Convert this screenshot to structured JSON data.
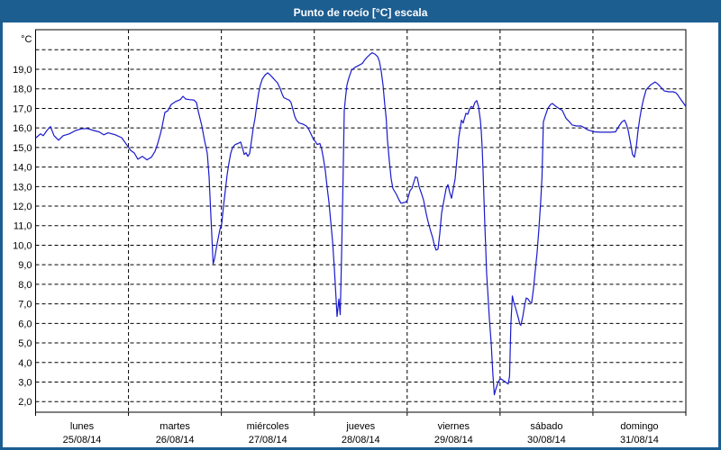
{
  "window": {
    "title": "Punto de rocío [°C] escala"
  },
  "colors": {
    "titlebar_bg": "#1d5e91",
    "title_text": "#ffffff",
    "frame": "#1d5e91",
    "plot_border": "#000000",
    "grid": "#000000",
    "line": "#1a1acc",
    "label": "#000000",
    "background": "#ffffff"
  },
  "chart_data": {
    "type": "line",
    "title": "Punto de rocío [°C] escala",
    "unit_label": "°C",
    "grid": "dashed",
    "legend": "none",
    "y_axis": {
      "labeled_ticks": [
        2,
        3,
        4,
        5,
        6,
        7,
        8,
        9,
        10,
        11,
        12,
        13,
        14,
        15,
        16,
        17,
        18,
        19
      ],
      "tick_labels": [
        "2,0",
        "3,0",
        "4,0",
        "5,0",
        "6,0",
        "7,0",
        "8,0",
        "9,0",
        "10,0",
        "11,0",
        "12,0",
        "13,0",
        "14,0",
        "15,0",
        "16,0",
        "17,0",
        "18,0",
        "19,0"
      ],
      "unlabeled_grid_max": 20,
      "ylim_bottom": 1.45,
      "ylim_top": 21.0
    },
    "x_axis": {
      "days": [
        {
          "name": "lunes",
          "date": "25/08/14"
        },
        {
          "name": "martes",
          "date": "26/08/14"
        },
        {
          "name": "miércoles",
          "date": "27/08/14"
        },
        {
          "name": "jueves",
          "date": "28/08/14"
        },
        {
          "name": "viernes",
          "date": "29/08/14"
        },
        {
          "name": "sábado",
          "date": "30/08/14"
        },
        {
          "name": "domingo",
          "date": "31/08/14"
        }
      ]
    },
    "series": [
      {
        "name": "Punto de rocío",
        "unit": "°C",
        "points": [
          [
            0.005,
            15.5
          ],
          [
            0.053,
            15.7
          ],
          [
            0.082,
            15.6
          ],
          [
            0.121,
            15.87
          ],
          [
            0.16,
            16.07
          ],
          [
            0.199,
            15.6
          ],
          [
            0.247,
            15.37
          ],
          [
            0.296,
            15.6
          ],
          [
            0.364,
            15.7
          ],
          [
            0.432,
            15.87
          ],
          [
            0.49,
            15.95
          ],
          [
            0.558,
            15.97
          ],
          [
            0.626,
            15.87
          ],
          [
            0.684,
            15.8
          ],
          [
            0.733,
            15.65
          ],
          [
            0.781,
            15.75
          ],
          [
            0.859,
            15.65
          ],
          [
            0.927,
            15.5
          ],
          [
            0.994,
            15.05
          ],
          [
            1.024,
            14.85
          ],
          [
            1.062,
            14.72
          ],
          [
            1.101,
            14.4
          ],
          [
            1.15,
            14.55
          ],
          [
            1.198,
            14.37
          ],
          [
            1.247,
            14.5
          ],
          [
            1.286,
            14.8
          ],
          [
            1.315,
            15.2
          ],
          [
            1.344,
            15.7
          ],
          [
            1.363,
            16.1
          ],
          [
            1.392,
            16.8
          ],
          [
            1.421,
            16.87
          ],
          [
            1.46,
            17.2
          ],
          [
            1.509,
            17.35
          ],
          [
            1.557,
            17.45
          ],
          [
            1.586,
            17.62
          ],
          [
            1.615,
            17.48
          ],
          [
            1.654,
            17.45
          ],
          [
            1.703,
            17.43
          ],
          [
            1.732,
            17.3
          ],
          [
            1.751,
            16.85
          ],
          [
            1.79,
            16.1
          ],
          [
            1.819,
            15.35
          ],
          [
            1.848,
            14.7
          ],
          [
            1.868,
            13.5
          ],
          [
            1.887,
            11.5
          ],
          [
            1.911,
            9.05
          ],
          [
            1.926,
            9.3
          ],
          [
            1.955,
            10.1
          ],
          [
            1.984,
            10.8
          ],
          [
            2.003,
            11.1
          ],
          [
            2.023,
            12.0
          ],
          [
            2.042,
            12.8
          ],
          [
            2.062,
            13.6
          ],
          [
            2.081,
            14.2
          ],
          [
            2.1,
            14.7
          ],
          [
            2.12,
            15.0
          ],
          [
            2.149,
            15.15
          ],
          [
            2.178,
            15.2
          ],
          [
            2.207,
            15.28
          ],
          [
            2.226,
            15.0
          ],
          [
            2.246,
            14.64
          ],
          [
            2.265,
            14.73
          ],
          [
            2.285,
            14.55
          ],
          [
            2.304,
            14.7
          ],
          [
            2.323,
            15.3
          ],
          [
            2.343,
            16.0
          ],
          [
            2.362,
            16.5
          ],
          [
            2.382,
            17.2
          ],
          [
            2.401,
            17.8
          ],
          [
            2.42,
            18.2
          ],
          [
            2.44,
            18.5
          ],
          [
            2.469,
            18.7
          ],
          [
            2.498,
            18.82
          ],
          [
            2.527,
            18.7
          ],
          [
            2.556,
            18.55
          ],
          [
            2.585,
            18.4
          ],
          [
            2.605,
            18.3
          ],
          [
            2.634,
            18.0
          ],
          [
            2.653,
            17.75
          ],
          [
            2.672,
            17.55
          ],
          [
            2.702,
            17.48
          ],
          [
            2.731,
            17.42
          ],
          [
            2.75,
            17.3
          ],
          [
            2.77,
            16.95
          ],
          [
            2.789,
            16.6
          ],
          [
            2.808,
            16.4
          ],
          [
            2.837,
            16.25
          ],
          [
            2.876,
            16.2
          ],
          [
            2.915,
            16.1
          ],
          [
            2.944,
            15.9
          ],
          [
            2.964,
            15.7
          ],
          [
            2.993,
            15.4
          ],
          [
            3.012,
            15.3
          ],
          [
            3.032,
            15.15
          ],
          [
            3.061,
            15.2
          ],
          [
            3.08,
            14.9
          ],
          [
            3.1,
            14.4
          ],
          [
            3.119,
            13.8
          ],
          [
            3.138,
            13.0
          ],
          [
            3.158,
            12.2
          ],
          [
            3.177,
            11.2
          ],
          [
            3.197,
            10.2
          ],
          [
            3.216,
            8.8
          ],
          [
            3.231,
            7.6
          ],
          [
            3.245,
            6.35
          ],
          [
            3.265,
            7.25
          ],
          [
            3.279,
            6.45
          ],
          [
            3.294,
            9.5
          ],
          [
            3.308,
            13.0
          ],
          [
            3.323,
            16.9
          ],
          [
            3.338,
            17.65
          ],
          [
            3.352,
            18.2
          ],
          [
            3.371,
            18.55
          ],
          [
            3.401,
            18.95
          ],
          [
            3.439,
            19.1
          ],
          [
            3.478,
            19.2
          ],
          [
            3.517,
            19.3
          ],
          [
            3.546,
            19.5
          ],
          [
            3.575,
            19.65
          ],
          [
            3.604,
            19.78
          ],
          [
            3.624,
            19.85
          ],
          [
            3.653,
            19.78
          ],
          [
            3.682,
            19.65
          ],
          [
            3.701,
            19.4
          ],
          [
            3.721,
            18.9
          ],
          [
            3.74,
            18.2
          ],
          [
            3.759,
            17.2
          ],
          [
            3.774,
            16.5
          ],
          [
            3.788,
            15.4
          ],
          [
            3.808,
            14.3
          ],
          [
            3.827,
            13.4
          ],
          [
            3.847,
            12.9
          ],
          [
            3.885,
            12.6
          ],
          [
            3.914,
            12.3
          ],
          [
            3.934,
            12.15
          ],
          [
            3.963,
            12.18
          ],
          [
            3.983,
            12.2
          ],
          [
            4.002,
            12.3
          ],
          [
            4.031,
            12.8
          ],
          [
            4.051,
            12.9
          ],
          [
            4.07,
            13.2
          ],
          [
            4.089,
            13.5
          ],
          [
            4.109,
            13.45
          ],
          [
            4.128,
            13.0
          ],
          [
            4.157,
            12.6
          ],
          [
            4.177,
            12.3
          ],
          [
            4.206,
            11.6
          ],
          [
            4.225,
            11.2
          ],
          [
            4.254,
            10.7
          ],
          [
            4.274,
            10.4
          ],
          [
            4.293,
            10.0
          ],
          [
            4.312,
            9.75
          ],
          [
            4.332,
            9.8
          ],
          [
            4.351,
            10.6
          ],
          [
            4.371,
            11.65
          ],
          [
            4.4,
            12.4
          ],
          [
            4.419,
            12.9
          ],
          [
            4.439,
            13.1
          ],
          [
            4.458,
            12.7
          ],
          [
            4.477,
            12.4
          ],
          [
            4.497,
            12.9
          ],
          [
            4.516,
            13.4
          ],
          [
            4.536,
            14.4
          ],
          [
            4.555,
            15.5
          ],
          [
            4.584,
            16.4
          ],
          [
            4.603,
            16.25
          ],
          [
            4.633,
            16.75
          ],
          [
            4.652,
            16.7
          ],
          [
            4.671,
            16.95
          ],
          [
            4.691,
            17.1
          ],
          [
            4.71,
            17.05
          ],
          [
            4.729,
            17.3
          ],
          [
            4.749,
            17.4
          ],
          [
            4.768,
            17.1
          ],
          [
            4.788,
            16.4
          ],
          [
            4.797,
            15.9
          ],
          [
            4.807,
            15.0
          ],
          [
            4.817,
            13.8
          ],
          [
            4.826,
            12.5
          ],
          [
            4.836,
            11.0
          ],
          [
            4.846,
            9.8
          ],
          [
            4.855,
            8.6
          ],
          [
            4.87,
            7.4
          ],
          [
            4.884,
            6.3
          ],
          [
            4.904,
            5.0
          ],
          [
            4.923,
            3.4
          ],
          [
            4.938,
            2.35
          ],
          [
            4.952,
            2.6
          ],
          [
            4.972,
            2.9
          ],
          [
            4.981,
            3.0
          ],
          [
            5.001,
            3.18
          ],
          [
            5.03,
            3.1
          ],
          [
            5.059,
            3.0
          ],
          [
            5.088,
            2.9
          ],
          [
            5.102,
            3.3
          ],
          [
            5.117,
            6.0
          ],
          [
            5.132,
            7.4
          ],
          [
            5.146,
            7.1
          ],
          [
            5.166,
            6.8
          ],
          [
            5.195,
            6.3
          ],
          [
            5.214,
            5.95
          ],
          [
            5.224,
            5.9
          ],
          [
            5.243,
            6.3
          ],
          [
            5.263,
            6.9
          ],
          [
            5.282,
            7.3
          ],
          [
            5.301,
            7.25
          ],
          [
            5.321,
            7.1
          ],
          [
            5.34,
            7.05
          ],
          [
            5.36,
            7.8
          ],
          [
            5.379,
            8.7
          ],
          [
            5.398,
            9.6
          ],
          [
            5.418,
            10.8
          ],
          [
            5.437,
            12.2
          ],
          [
            5.452,
            13.5
          ],
          [
            5.466,
            16.3
          ],
          [
            5.486,
            16.6
          ],
          [
            5.515,
            17.0
          ],
          [
            5.544,
            17.2
          ],
          [
            5.563,
            17.25
          ],
          [
            5.602,
            17.1
          ],
          [
            5.631,
            17.0
          ],
          [
            5.67,
            16.9
          ],
          [
            5.709,
            16.5
          ],
          [
            5.748,
            16.3
          ],
          [
            5.777,
            16.15
          ],
          [
            5.825,
            16.1
          ],
          [
            5.874,
            16.1
          ],
          [
            5.912,
            16.0
          ],
          [
            5.942,
            15.9
          ],
          [
            5.98,
            15.85
          ],
          [
            6.019,
            15.8
          ],
          [
            6.077,
            15.78
          ],
          [
            6.135,
            15.78
          ],
          [
            6.194,
            15.78
          ],
          [
            6.242,
            15.8
          ],
          [
            6.281,
            16.1
          ],
          [
            6.31,
            16.3
          ],
          [
            6.339,
            16.4
          ],
          [
            6.359,
            16.2
          ],
          [
            6.378,
            15.9
          ],
          [
            6.407,
            15.16
          ],
          [
            6.426,
            14.65
          ],
          [
            6.446,
            14.5
          ],
          [
            6.465,
            15.0
          ],
          [
            6.485,
            15.85
          ],
          [
            6.504,
            16.5
          ],
          [
            6.523,
            17.0
          ],
          [
            6.543,
            17.45
          ],
          [
            6.572,
            17.95
          ],
          [
            6.62,
            18.2
          ],
          [
            6.669,
            18.35
          ],
          [
            6.698,
            18.25
          ],
          [
            6.727,
            18.1
          ],
          [
            6.766,
            17.9
          ],
          [
            6.814,
            17.85
          ],
          [
            6.863,
            17.85
          ],
          [
            6.892,
            17.8
          ],
          [
            6.911,
            17.7
          ],
          [
            6.94,
            17.5
          ],
          [
            6.97,
            17.3
          ],
          [
            6.999,
            17.1
          ]
        ]
      }
    ]
  }
}
